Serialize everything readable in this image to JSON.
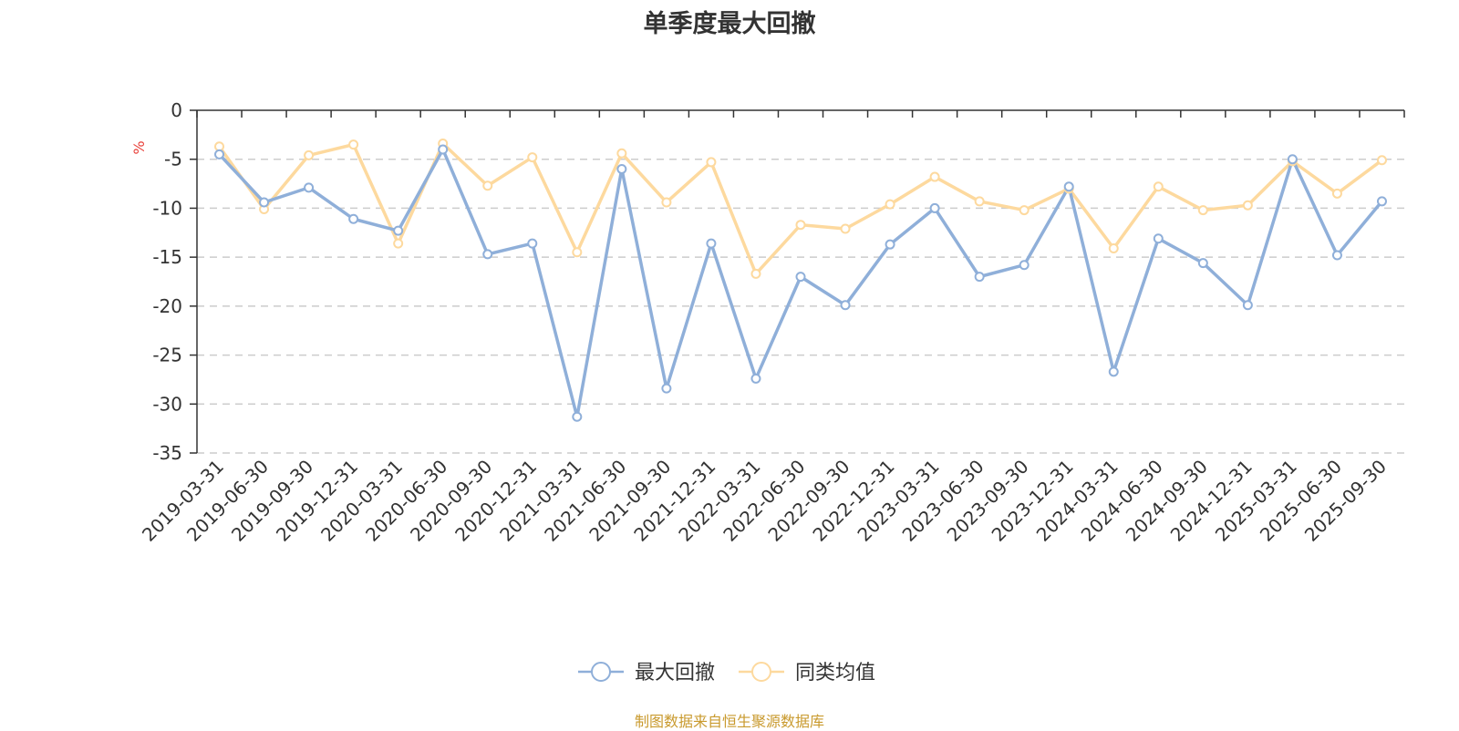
{
  "chart_data": {
    "type": "line",
    "title": "单季度最大回撤",
    "ylabel": "%",
    "ylim": [
      -35,
      0
    ],
    "yticks": [
      0,
      -5,
      -10,
      -15,
      -20,
      -25,
      -30,
      -35
    ],
    "grid": true,
    "legend_position": "bottom",
    "categories": [
      "2019-03-31",
      "2019-06-30",
      "2019-09-30",
      "2019-12-31",
      "2020-03-31",
      "2020-06-30",
      "2020-09-30",
      "2020-12-31",
      "2021-03-31",
      "2021-06-30",
      "2021-09-30",
      "2021-12-31",
      "2022-03-31",
      "2022-06-30",
      "2022-09-30",
      "2022-12-31",
      "2023-03-31",
      "2023-06-30",
      "2023-09-30",
      "2023-12-31",
      "2024-03-31",
      "2024-06-30",
      "2024-09-30",
      "2024-12-31",
      "2025-03-31",
      "2025-06-30",
      "2025-09-30"
    ],
    "series": [
      {
        "name": "最大回撤",
        "color": "#8fafd9",
        "values": [
          -4.5,
          -9.4,
          -7.9,
          -11.1,
          -12.3,
          -4.0,
          -14.7,
          -13.6,
          -31.3,
          -6.0,
          -28.4,
          -13.6,
          -27.4,
          -17.0,
          -19.9,
          -13.7,
          -10.0,
          -17.0,
          -15.8,
          -7.8,
          -26.7,
          -13.1,
          -15.6,
          -19.9,
          -5.0,
          -14.8,
          -9.3
        ]
      },
      {
        "name": "同类均值",
        "color": "#fdd99e",
        "values": [
          -3.7,
          -10.1,
          -4.6,
          -3.5,
          -13.6,
          -3.4,
          -7.7,
          -4.8,
          -14.5,
          -4.4,
          -9.4,
          -5.3,
          -16.7,
          -11.7,
          -12.1,
          -9.6,
          -6.8,
          -9.3,
          -10.2,
          -8.0,
          -14.1,
          -7.8,
          -10.2,
          -9.7,
          -5.2,
          -8.5,
          -5.1
        ]
      }
    ]
  },
  "source": {
    "text": "制图数据来自恒生聚源数据库",
    "color": "#c99a2e"
  }
}
